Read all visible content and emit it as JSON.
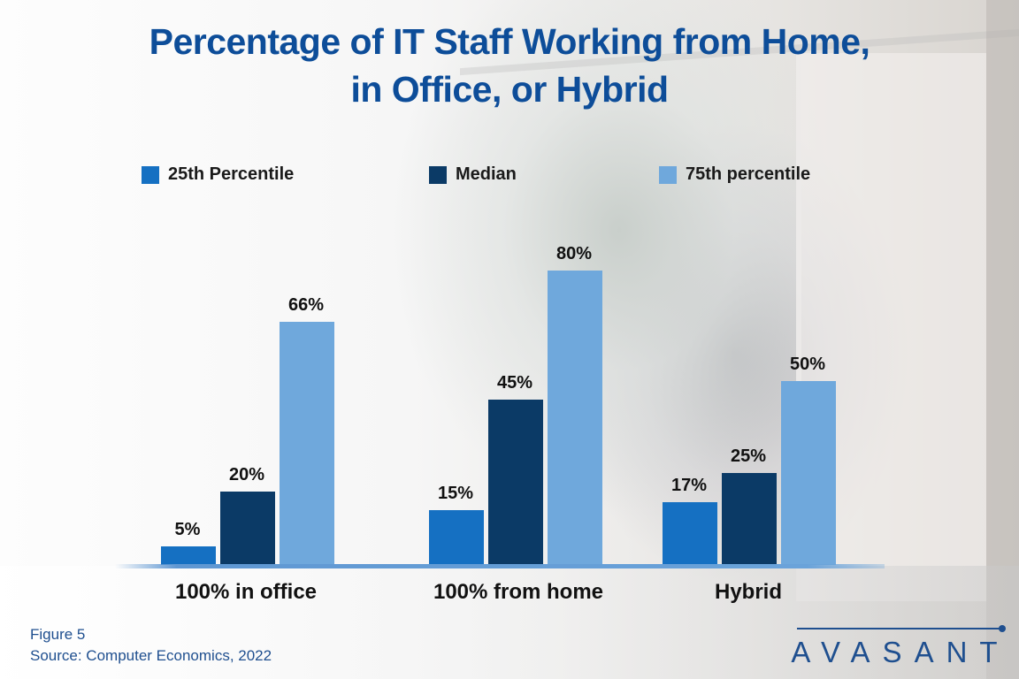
{
  "title_line1": "Percentage of IT Staff Working from Home,",
  "title_line2": "in Office, or Hybrid",
  "legend": [
    {
      "label": "25th Percentile",
      "color": "#1570c2"
    },
    {
      "label": "Median",
      "color": "#0b3a66"
    },
    {
      "label": "75th percentile",
      "color": "#6fa8dc"
    }
  ],
  "categories": [
    "100% in office",
    "100% from home",
    "Hybrid"
  ],
  "bars": [
    [
      {
        "value": 5,
        "label": "5%"
      },
      {
        "value": 20,
        "label": "20%"
      },
      {
        "value": 66,
        "label": "66%"
      }
    ],
    [
      {
        "value": 15,
        "label": "15%"
      },
      {
        "value": 45,
        "label": "45%"
      },
      {
        "value": 80,
        "label": "80%"
      }
    ],
    [
      {
        "value": 17,
        "label": "17%"
      },
      {
        "value": 25,
        "label": "25%"
      },
      {
        "value": 50,
        "label": "50%"
      }
    ]
  ],
  "footer": {
    "figure": "Figure 5",
    "source": "Source: Computer Economics, 2022"
  },
  "logo": {
    "text": "AVASANT"
  },
  "chart_data": {
    "type": "bar",
    "title": "Percentage of IT Staff Working from Home, in Office, or Hybrid",
    "categories": [
      "100% in office",
      "100% from home",
      "Hybrid"
    ],
    "series": [
      {
        "name": "25th Percentile",
        "values": [
          5,
          15,
          17
        ],
        "color": "#1570c2"
      },
      {
        "name": "Median",
        "values": [
          20,
          45,
          25
        ],
        "color": "#0b3a66"
      },
      {
        "name": "75th percentile",
        "values": [
          66,
          80,
          50
        ],
        "color": "#6fa8dc"
      }
    ],
    "xlabel": "",
    "ylabel": "",
    "ylim": [
      0,
      80
    ],
    "grid": false,
    "legend_position": "top",
    "data_labels": true,
    "unit": "%",
    "annotations": [
      "Figure 5",
      "Source: Computer Economics, 2022"
    ]
  }
}
